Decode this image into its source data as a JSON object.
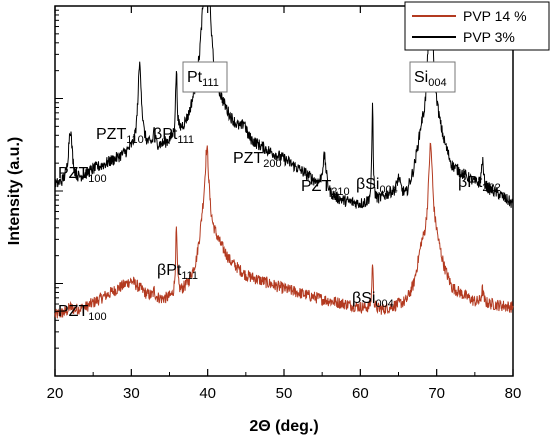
{
  "chart_data": {
    "type": "line",
    "xlabel": "2Θ (deg.)",
    "ylabel": "Intensity (a.u.)",
    "xlim": [
      20,
      80
    ],
    "x_ticks": [
      20,
      30,
      40,
      50,
      60,
      70,
      80
    ],
    "y_scale": "log",
    "y_ticks_labeled": false,
    "series": [
      {
        "name": "PVP 14 %",
        "color": "#b33a20",
        "offset_decades": 0,
        "baseline": [
          [
            20,
            2.3
          ],
          [
            24,
            2.6
          ],
          [
            27,
            3.1
          ],
          [
            30,
            3.6
          ],
          [
            32,
            3.1
          ],
          [
            34,
            2.9
          ],
          [
            36,
            3.0
          ],
          [
            37.5,
            3.5
          ],
          [
            38.5,
            4.2
          ],
          [
            39.3,
            5.5
          ],
          [
            41,
            5.2
          ],
          [
            43,
            4.3
          ],
          [
            45,
            3.8
          ],
          [
            50,
            3.3
          ],
          [
            55,
            2.9
          ],
          [
            60,
            2.6
          ],
          [
            63,
            2.5
          ],
          [
            66,
            2.8
          ],
          [
            67,
            3.4
          ],
          [
            68,
            4.8
          ],
          [
            70,
            5.0
          ],
          [
            71,
            4.0
          ],
          [
            72,
            3.3
          ],
          [
            75,
            2.8
          ],
          [
            80,
            2.6
          ]
        ],
        "peaks": [
          {
            "x": 22.0,
            "h": 0.15,
            "w": 0.3
          },
          {
            "x": 33.0,
            "h": 0.25,
            "w": 0.12
          },
          {
            "x": 35.9,
            "h": 2.5,
            "w": 0.13
          },
          {
            "x": 39.9,
            "h": 3.2,
            "w": 0.35
          },
          {
            "x": 61.6,
            "h": 1.8,
            "w": 0.1
          },
          {
            "x": 69.2,
            "h": 3.8,
            "w": 0.35
          },
          {
            "x": 76.0,
            "h": 0.5,
            "w": 0.15
          }
        ]
      },
      {
        "name": "PVP 3%",
        "color": "#000000",
        "offset_decades": 4.2,
        "baseline": [
          [
            20,
            3.0
          ],
          [
            23,
            3.2
          ],
          [
            25,
            3.6
          ],
          [
            28,
            4.0
          ],
          [
            30,
            4.3
          ],
          [
            32,
            4.4
          ],
          [
            34,
            4.5
          ],
          [
            36,
            4.8
          ],
          [
            37.5,
            5.5
          ],
          [
            38.5,
            6.5
          ],
          [
            39.2,
            7.5
          ],
          [
            41,
            6.5
          ],
          [
            43,
            5.5
          ],
          [
            45,
            4.8
          ],
          [
            48,
            4.3
          ],
          [
            50,
            4.0
          ],
          [
            53,
            3.4
          ],
          [
            56,
            2.6
          ],
          [
            58,
            2.4
          ],
          [
            60,
            2.3
          ],
          [
            62,
            2.4
          ],
          [
            64,
            2.7
          ],
          [
            66,
            2.6
          ],
          [
            67,
            3.5
          ],
          [
            68,
            5.0
          ],
          [
            70,
            5.5
          ],
          [
            71,
            4.5
          ],
          [
            72,
            3.7
          ],
          [
            75,
            3.1
          ],
          [
            78,
            2.7
          ],
          [
            80,
            2.3
          ]
        ],
        "peaks": [
          {
            "x": 22.0,
            "h": 2.0,
            "w": 0.3
          },
          {
            "x": 31.1,
            "h": 3.2,
            "w": 0.3
          },
          {
            "x": 33.0,
            "h": 0.7,
            "w": 0.12
          },
          {
            "x": 35.9,
            "h": 2.5,
            "w": 0.13
          },
          {
            "x": 39.9,
            "h": 8.0,
            "w": 0.35
          },
          {
            "x": 44.8,
            "h": 0.5,
            "w": 0.3
          },
          {
            "x": 55.3,
            "h": 1.3,
            "w": 0.3
          },
          {
            "x": 61.6,
            "h": 3.8,
            "w": 0.1
          },
          {
            "x": 65.0,
            "h": 0.6,
            "w": 0.3
          },
          {
            "x": 69.2,
            "h": 7.0,
            "w": 0.3
          },
          {
            "x": 76.0,
            "h": 1.0,
            "w": 0.15
          }
        ]
      }
    ],
    "annotations": [
      {
        "main": "PZT",
        "sub": "100"
      },
      {
        "main": "PZT",
        "sub": "110"
      },
      {
        "main": "βPt",
        "sub": "111"
      },
      {
        "main": "Pt",
        "sub": "111"
      },
      {
        "main": "PZT",
        "sub": "200"
      },
      {
        "main": "PZT",
        "sub": "210"
      },
      {
        "main": "βSi",
        "sub": "004"
      },
      {
        "main": "Si",
        "sub": "004"
      },
      {
        "main": "βPt",
        "sub": "222"
      },
      {
        "main": "βPt",
        "sub": "111"
      },
      {
        "main": "PZT",
        "sub": "100"
      },
      {
        "main": "βSi",
        "sub": "004"
      }
    ],
    "legend": {
      "position": "top-right"
    }
  }
}
